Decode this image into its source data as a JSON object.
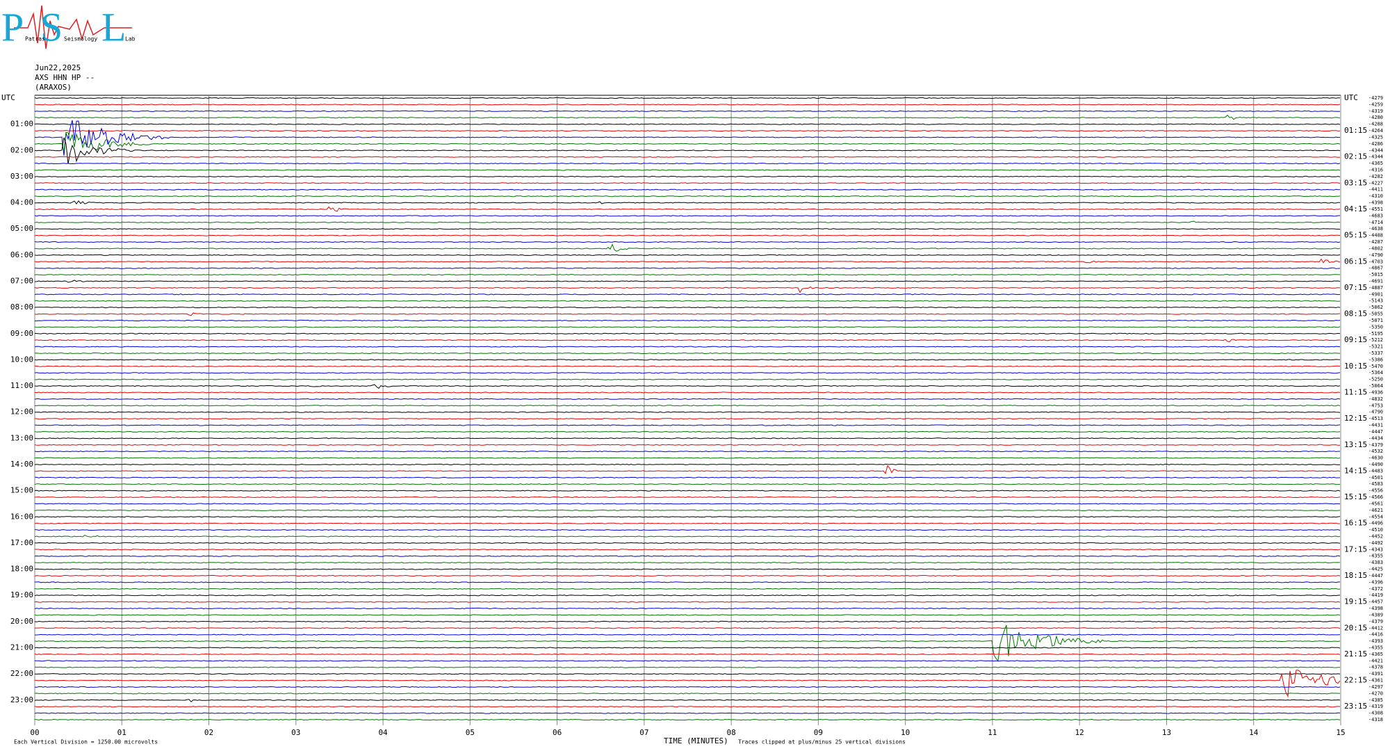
{
  "logo": {
    "letters": [
      "P",
      "S",
      "L"
    ],
    "words": [
      "Patras",
      "Seismology",
      "Lab"
    ]
  },
  "header": {
    "date": "Jun22,2025",
    "station": "AXS HHN HP --",
    "location": "(ARAXOS)"
  },
  "left_labels": [
    "UTC",
    "01:00",
    "02:00",
    "03:00",
    "04:00",
    "05:00",
    "06:00",
    "07:00",
    "08:00",
    "09:00",
    "10:00",
    "11:00",
    "12:00",
    "13:00",
    "14:00",
    "15:00",
    "16:00",
    "17:00",
    "18:00",
    "19:00",
    "20:00",
    "21:00",
    "22:00",
    "23:00"
  ],
  "right_labels": [
    "UTC",
    "01:15",
    "02:15",
    "03:15",
    "04:15",
    "05:15",
    "06:15",
    "07:15",
    "08:15",
    "09:15",
    "10:15",
    "11:15",
    "12:15",
    "13:15",
    "14:15",
    "15:15",
    "16:15",
    "17:15",
    "18:15",
    "19:15",
    "20:15",
    "21:15",
    "22:15",
    "23:15"
  ],
  "trace_offsets": [
    "-4279",
    "-4259",
    "-4319",
    "-4280",
    "-4288",
    "-4264",
    "-4325",
    "-4286",
    "-4344",
    "-4344",
    "-4365",
    "-4316",
    "-4282",
    "-4227",
    "-4411",
    "-4310",
    "-4398",
    "-4551",
    "-4683",
    "-4714",
    "-4638",
    "-4488",
    "-4287",
    "-4802",
    "-4790",
    "-4703",
    "-4867",
    "-5015",
    "-4691",
    "-4887",
    "-4901",
    "-5143",
    "-5062",
    "-5055",
    "-5071",
    "-5350",
    "-5195",
    "-5212",
    "-5321",
    "-5337",
    "-5386",
    "-5470",
    "-5364",
    "-5250",
    "-5064",
    "-4936",
    "-4832",
    "-4753",
    "-4790",
    "-4513",
    "-4431",
    "-4447",
    "-4434",
    "-4379",
    "-4532",
    "-4630",
    "-4490",
    "-4483",
    "-4501",
    "-4583",
    "-4556",
    "-4566",
    "-4561",
    "-4621",
    "-4554",
    "-4496",
    "-4510",
    "-4452",
    "-4492",
    "-4343",
    "-4355",
    "-4383",
    "-4425",
    "-4447",
    "-4396",
    "-4372",
    "-4419",
    "-4457",
    "-4398",
    "-4389",
    "-4379",
    "-4412",
    "-4416",
    "-4393",
    "-4355",
    "-4365",
    "-4421",
    "-4378",
    "-4391",
    "-4361",
    "-4297",
    "-4270",
    "-4385",
    "-4319",
    "-4308",
    "-4318"
  ],
  "x_labels": [
    "00",
    "01",
    "02",
    "03",
    "04",
    "05",
    "06",
    "07",
    "08",
    "09",
    "10",
    "11",
    "12",
    "13",
    "14",
    "15"
  ],
  "x_title": "TIME (MINUTES)",
  "clip_note": "Traces clipped at plus/minus 25 vertical divisions",
  "scale_note": "Each Vertical Division = 1250.00 microvolts"
}
